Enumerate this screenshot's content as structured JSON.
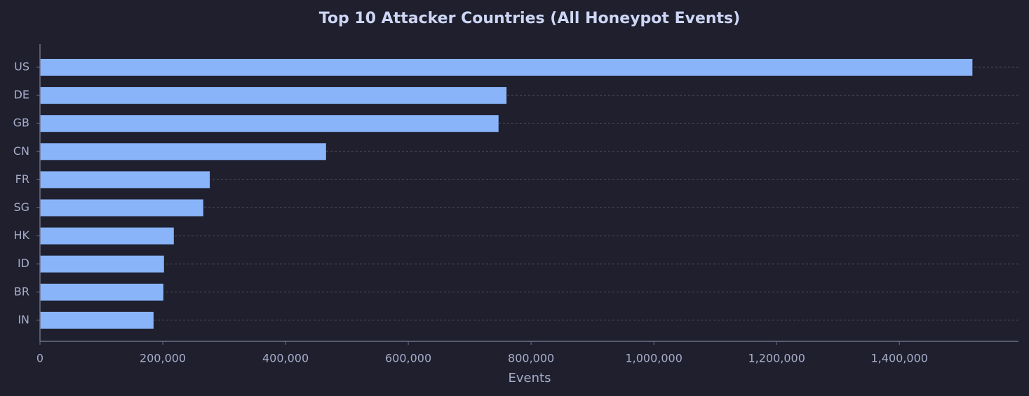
{
  "chart_data": {
    "type": "bar",
    "orientation": "horizontal",
    "title": "Top 10 Attacker Countries (All Honeypot Events)",
    "x_label": "Events",
    "categories": [
      "US",
      "DE",
      "GB",
      "CN",
      "FR",
      "SG",
      "HK",
      "ID",
      "BR",
      "IN"
    ],
    "values": [
      1519000,
      760000,
      747000,
      466000,
      276600,
      266000,
      218000,
      202000,
      201000,
      185000
    ],
    "color": "#89b4fa",
    "xlim": [
      0,
      1594000
    ],
    "xticks": [
      0,
      {
        "value": 200000,
        "label": "200,000"
      },
      {
        "value": 400000,
        "label": "400,000"
      },
      {
        "value": 600000,
        "label": "600,000"
      },
      {
        "value": 800000,
        "label": "800,000"
      },
      {
        "value": 1000000,
        "label": "1,000,000"
      },
      {
        "value": 1200000,
        "label": "1,200,000"
      },
      {
        "value": 1400000,
        "label": "1,400,000"
      }
    ],
    "grid": true
  }
}
